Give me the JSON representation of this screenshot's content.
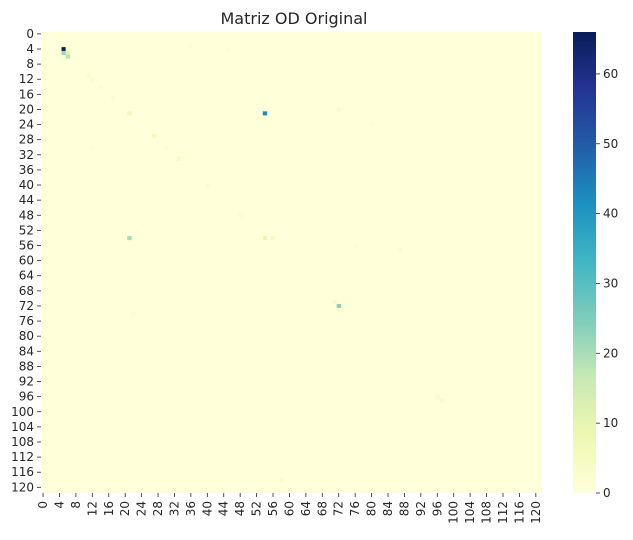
{
  "chart_data": {
    "type": "heatmap",
    "title": "Matriz OD Original",
    "xlabel": "",
    "ylabel": "",
    "rows": 122,
    "cols": 122,
    "x_ticks": [
      0,
      4,
      8,
      12,
      16,
      20,
      24,
      28,
      32,
      36,
      40,
      44,
      48,
      52,
      56,
      60,
      64,
      68,
      72,
      76,
      80,
      84,
      88,
      92,
      96,
      100,
      104,
      108,
      112,
      116,
      120
    ],
    "y_ticks": [
      0,
      4,
      8,
      12,
      16,
      20,
      24,
      28,
      32,
      36,
      40,
      44,
      48,
      52,
      56,
      60,
      64,
      68,
      72,
      76,
      80,
      84,
      88,
      92,
      96,
      100,
      104,
      108,
      112,
      116,
      120
    ],
    "colorbar": {
      "min": 0,
      "max": 66,
      "ticks": [
        0,
        10,
        20,
        30,
        40,
        50,
        60
      ],
      "colormap": "YlGnBu",
      "position": "right"
    },
    "cells": [
      {
        "row": 4,
        "col": 5,
        "value": 66
      },
      {
        "row": 4,
        "col": 6,
        "value": 3
      },
      {
        "row": 5,
        "col": 5,
        "value": 22
      },
      {
        "row": 5,
        "col": 6,
        "value": 10
      },
      {
        "row": 6,
        "col": 6,
        "value": 18
      },
      {
        "row": 21,
        "col": 54,
        "value": 42
      },
      {
        "row": 21,
        "col": 21,
        "value": 7
      },
      {
        "row": 20,
        "col": 72,
        "value": 3
      },
      {
        "row": 27,
        "col": 27,
        "value": 6
      },
      {
        "row": 33,
        "col": 33,
        "value": 5
      },
      {
        "row": 54,
        "col": 21,
        "value": 20
      },
      {
        "row": 54,
        "col": 54,
        "value": 9
      },
      {
        "row": 54,
        "col": 56,
        "value": 5
      },
      {
        "row": 72,
        "col": 72,
        "value": 24
      },
      {
        "row": 71,
        "col": 71,
        "value": 4
      },
      {
        "row": 73,
        "col": 72,
        "value": 3
      },
      {
        "row": 11,
        "col": 11,
        "value": 2
      },
      {
        "row": 12,
        "col": 12,
        "value": 2
      },
      {
        "row": 14,
        "col": 14,
        "value": 2
      },
      {
        "row": 17,
        "col": 17,
        "value": 2
      },
      {
        "row": 30,
        "col": 30,
        "value": 2
      },
      {
        "row": 40,
        "col": 40,
        "value": 2
      },
      {
        "row": 48,
        "col": 48,
        "value": 2
      },
      {
        "row": 57,
        "col": 87,
        "value": 2
      },
      {
        "row": 74,
        "col": 22,
        "value": 2
      },
      {
        "row": 97,
        "col": 97,
        "value": 3
      },
      {
        "row": 96,
        "col": 96,
        "value": 2
      },
      {
        "row": 118,
        "col": 58,
        "value": 2
      },
      {
        "row": 3,
        "col": 36,
        "value": 1
      },
      {
        "row": 56,
        "col": 76,
        "value": 1
      },
      {
        "row": 4,
        "col": 45,
        "value": 1
      },
      {
        "row": 24,
        "col": 80,
        "value": 1
      },
      {
        "row": 30,
        "col": 12,
        "value": 1
      },
      {
        "row": 46,
        "col": 79,
        "value": 1
      }
    ]
  }
}
